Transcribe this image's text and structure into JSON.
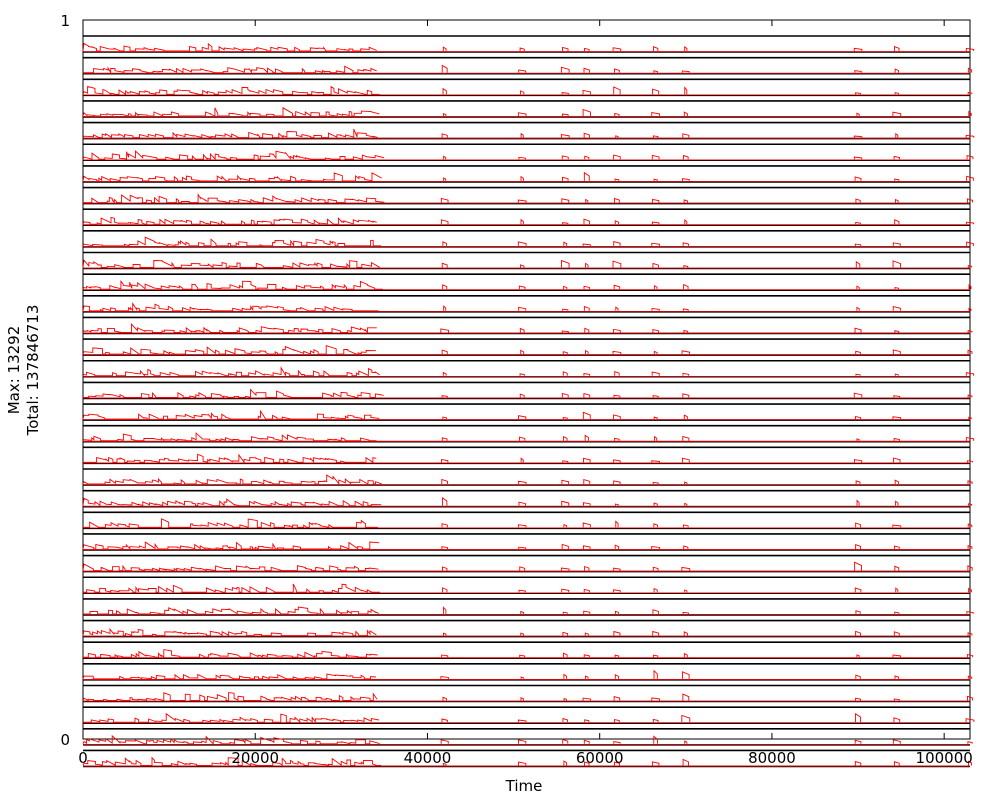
{
  "chart_data": {
    "type": "line",
    "title": "",
    "xlabel": "Time",
    "ylabel_lines": [
      "Max: 13292",
      "Total: 137846713"
    ],
    "xlim": [
      0,
      103000
    ],
    "ylim": [
      0,
      1
    ],
    "x_ticks": [
      0,
      20000,
      40000,
      60000,
      80000,
      100000
    ],
    "x_tick_labels": [
      "0",
      "20000",
      "40000",
      "60000",
      "80000",
      "100000"
    ],
    "y_ticks": [
      0,
      1
    ],
    "y_tick_labels": [
      "0",
      "1"
    ],
    "grid": false,
    "legend": "none",
    "series_count": 34,
    "series_color": "#ff0000",
    "separator_color": "#000000",
    "activity_bursts_x": [
      42000,
      51000,
      56000,
      58500,
      62000,
      66500,
      70000,
      90000,
      94500,
      103000
    ],
    "dense_activity_range_x": [
      0,
      34000
    ]
  }
}
